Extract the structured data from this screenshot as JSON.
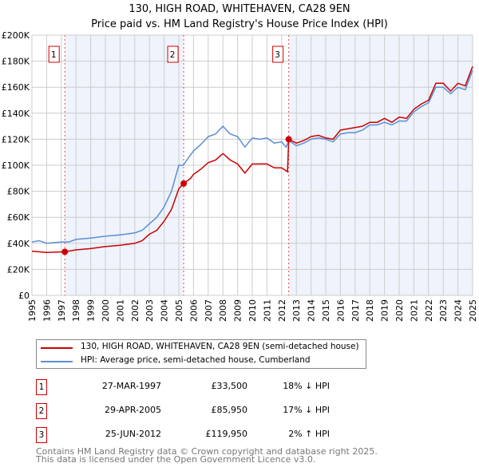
{
  "chart_data": {
    "type": "line",
    "title": "130, HIGH ROAD, WHITEHAVEN, CA28 9EN",
    "subtitle": "Price paid vs. HM Land Registry's House Price Index (HPI)",
    "xlim": [
      1995,
      2025
    ],
    "ylim": [
      0,
      200000
    ],
    "y_ticks": [
      0,
      20000,
      40000,
      60000,
      80000,
      100000,
      120000,
      140000,
      160000,
      180000,
      200000
    ],
    "y_tick_labels": [
      "£0",
      "£20K",
      "£40K",
      "£60K",
      "£80K",
      "£100K",
      "£120K",
      "£140K",
      "£160K",
      "£180K",
      "£200K"
    ],
    "x_ticks": [
      1995,
      1996,
      1997,
      1998,
      1999,
      2000,
      2001,
      2002,
      2003,
      2004,
      2005,
      2006,
      2007,
      2008,
      2009,
      2010,
      2011,
      2012,
      2013,
      2014,
      2015,
      2016,
      2017,
      2018,
      2019,
      2020,
      2021,
      2022,
      2023,
      2024,
      2025
    ],
    "grid": true,
    "series": [
      {
        "name": "130, HIGH ROAD, WHITEHAVEN, CA28 9EN (semi-detached house)",
        "color": "#cc0000",
        "x": [
          1995,
          1996,
          1997.24,
          1998,
          1999,
          2000,
          2001,
          2002,
          2002.5,
          2003,
          2003.5,
          2004,
          2004.5,
          2005,
          2005.33,
          2005.8,
          2006,
          2006.5,
          2007,
          2007.5,
          2008,
          2008.5,
          2009,
          2009.5,
          2010,
          2010.5,
          2011,
          2011.5,
          2012,
          2012.4,
          2012.48,
          2013,
          2013.5,
          2014,
          2014.5,
          2015,
          2015.5,
          2016,
          2016.5,
          2017,
          2017.5,
          2018,
          2018.5,
          2019,
          2019.5,
          2020,
          2020.5,
          2021,
          2021.5,
          2022,
          2022.5,
          2023,
          2023.5,
          2024,
          2024.5,
          2025
        ],
        "y": [
          34,
          33,
          33.5,
          35,
          36,
          37.5,
          38.5,
          40,
          42,
          47,
          50,
          57,
          66,
          82,
          85.95,
          90,
          93,
          97,
          102,
          104,
          109,
          104,
          101,
          94,
          101,
          101,
          101,
          98,
          98,
          95,
          119.95,
          117,
          119,
          122,
          123,
          121,
          120,
          127,
          128,
          129,
          130,
          133,
          133,
          136,
          133,
          137,
          136,
          143,
          147,
          150,
          163,
          163,
          157,
          163,
          161,
          176
        ]
      },
      {
        "name": "HPI: Average price, semi-detached house, Cumberland",
        "color": "#5b8fd4",
        "x": [
          1995,
          1995.5,
          1996,
          1997,
          1997.5,
          1998,
          1999,
          2000,
          2001,
          2002,
          2002.5,
          2003,
          2003.5,
          2004,
          2004.5,
          2005,
          2005.3,
          2005.8,
          2006,
          2006.5,
          2007,
          2007.5,
          2008,
          2008.5,
          2009,
          2009.5,
          2010,
          2010.5,
          2011,
          2011.5,
          2012,
          2012.3,
          2012.5,
          2013,
          2013.5,
          2014,
          2014.5,
          2015,
          2015.5,
          2016,
          2016.5,
          2017,
          2017.5,
          2018,
          2018.5,
          2019,
          2019.5,
          2020,
          2020.5,
          2021,
          2021.5,
          2022,
          2022.5,
          2023,
          2023.5,
          2024,
          2024.5,
          2025
        ],
        "y": [
          41,
          42,
          40,
          41,
          41,
          43,
          44,
          45.5,
          46.5,
          48,
          50,
          55,
          60,
          68,
          80,
          100,
          100,
          108,
          111,
          116,
          122,
          124,
          130,
          124,
          122,
          114,
          121,
          120,
          121,
          117,
          118,
          114,
          119,
          115,
          117,
          120,
          121,
          120,
          118,
          124,
          125,
          125,
          127,
          131,
          131,
          133,
          131,
          134,
          134,
          141,
          145,
          148,
          160,
          160,
          155,
          160,
          158,
          173
        ]
      }
    ],
    "y_units": "thousands GBP",
    "sales": [
      {
        "n": "1",
        "x": 1997.24,
        "y": 33.5,
        "date": "27-MAR-1997",
        "price": "£33,500",
        "hpi": "18% ↓ HPI"
      },
      {
        "n": "2",
        "x": 2005.33,
        "y": 85.95,
        "date": "29-APR-2005",
        "price": "£85,950",
        "hpi": "17% ↓ HPI"
      },
      {
        "n": "3",
        "x": 2012.48,
        "y": 119.95,
        "date": "25-JUN-2012",
        "price": "£119,950",
        "hpi": "2% ↑ HPI"
      }
    ]
  },
  "footer": [
    "Contains HM Land Registry data © Crown copyright and database right 2025.",
    "This data is licensed under the Open Government Licence v3.0."
  ]
}
